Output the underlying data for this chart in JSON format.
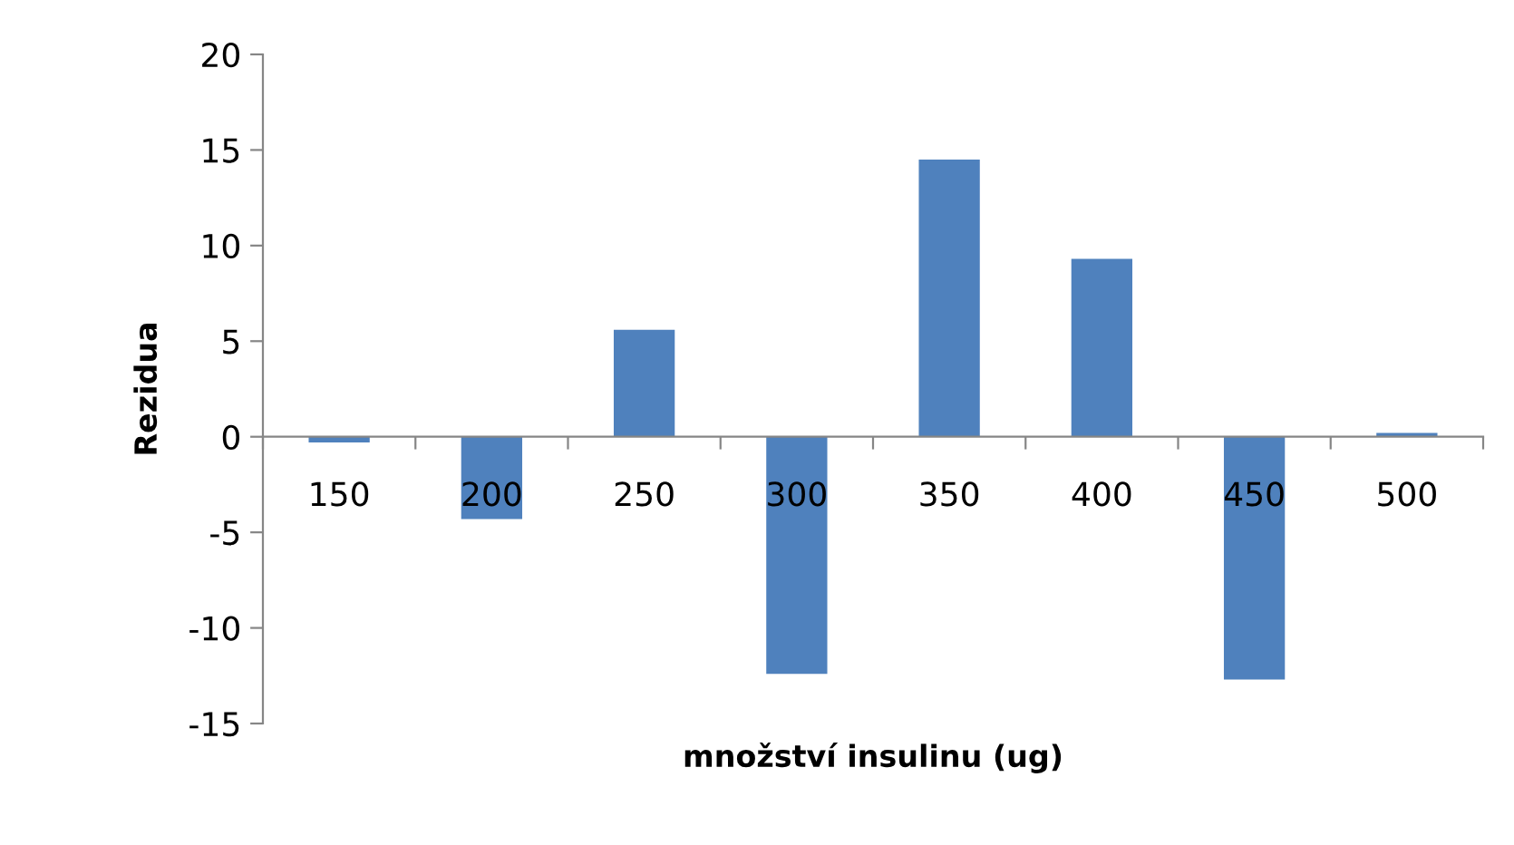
{
  "chart_data": {
    "type": "bar",
    "xlabel": "množství insulinu (ug)",
    "ylabel": "Rezidua",
    "categories": [
      "150",
      "200",
      "250",
      "300",
      "350",
      "400",
      "450",
      "500"
    ],
    "values": [
      -0.3,
      -4.3,
      5.6,
      -12.4,
      14.5,
      9.3,
      -12.7,
      0.2
    ],
    "color": "#4f81bd",
    "ylim": [
      -15,
      20
    ],
    "yticks": [
      -15,
      -10,
      -5,
      0,
      5,
      10,
      15,
      20
    ],
    "grid": false,
    "legend": false
  }
}
